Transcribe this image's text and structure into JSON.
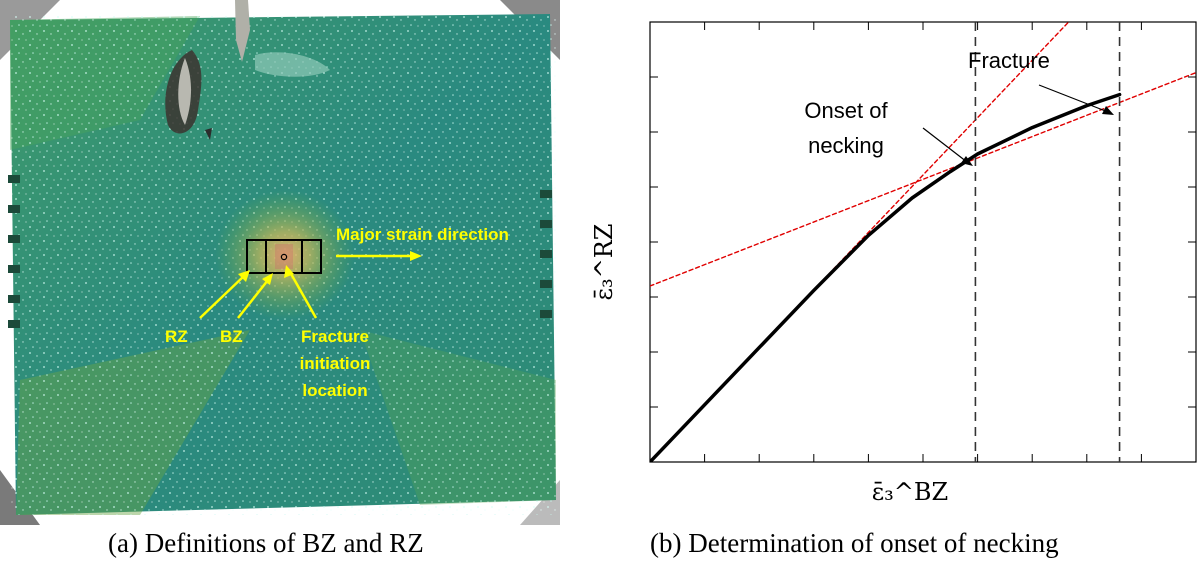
{
  "panel_a": {
    "labels": {
      "major_strain": "Major strain direction",
      "rz": "RZ",
      "bz": "BZ",
      "fracture_line1": "Fracture",
      "fracture_line2": "initiation",
      "fracture_line3": "location"
    },
    "caption": "(a) Definitions of BZ and RZ"
  },
  "panel_b": {
    "caption": "(b) Determination of onset of necking",
    "annotations": {
      "fracture": "Fracture",
      "onset_line1": "Onset of",
      "onset_line2": "necking"
    }
  },
  "chart_data": {
    "type": "line",
    "title": "",
    "xlabel": "ε̄₃^BZ",
    "ylabel": "ε̄₃^RZ",
    "x_ticks": [
      "",
      "",
      "",
      "",
      "",
      "",
      "",
      "",
      "",
      ""
    ],
    "y_ticks": [
      "",
      "",
      "",
      "",
      "",
      "",
      "",
      ""
    ],
    "xlim": [
      0,
      1
    ],
    "ylim": [
      0,
      1
    ],
    "grid": false,
    "series": [
      {
        "name": "strain curve",
        "style": "solid",
        "color": "#000000",
        "x": [
          0,
          0.1,
          0.2,
          0.3,
          0.4,
          0.48,
          0.55,
          0.6,
          0.65,
          0.7,
          0.8,
          0.86
        ],
        "y": [
          0,
          0.13,
          0.26,
          0.39,
          0.515,
          0.6,
          0.66,
          0.7,
          0.73,
          0.76,
          0.81,
          0.835
        ]
      },
      {
        "name": "initial tangent",
        "style": "dashed",
        "color": "#e00000",
        "x": [
          0,
          0.92
        ],
        "y": [
          0,
          1.2
        ]
      },
      {
        "name": "final tangent",
        "style": "dashed",
        "color": "#e00000",
        "x": [
          0,
          1
        ],
        "y": [
          0.4,
          0.885
        ]
      }
    ],
    "vlines": [
      {
        "name": "onset of necking",
        "x": 0.596
      },
      {
        "name": "fracture",
        "x": 0.86
      }
    ]
  }
}
